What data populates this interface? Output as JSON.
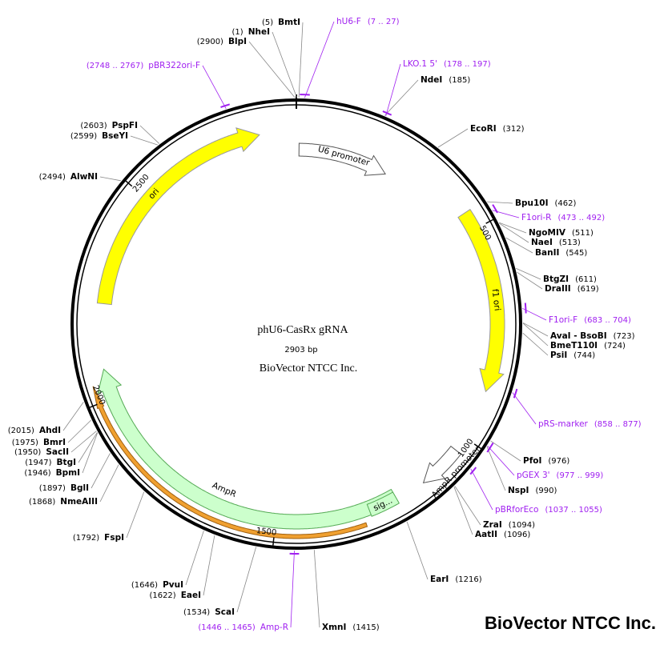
{
  "title": "phU6-CasRx gRNA",
  "length": {
    "value": 2903,
    "label": "2903 bp"
  },
  "company": "BioVector NTCC Inc.",
  "watermark": "BioVector NTCC Inc.",
  "ticks": [
    500,
    1000,
    1500,
    2000,
    2500
  ],
  "features": [
    {
      "name": "U6 promoter",
      "start": 7,
      "end": 247,
      "color": "#ffffff"
    },
    {
      "name": "f1 ori",
      "start": 456,
      "end": 884,
      "color": "#ffff00"
    },
    {
      "name": "AmpR promoter",
      "start": 1035,
      "end": 1140,
      "color": "#ffffff"
    },
    {
      "name": "AmpR",
      "start": 1211,
      "end": 2071,
      "color": "#ccffcc"
    },
    {
      "name": "sig...",
      "start": 1211,
      "end": 1279,
      "color": "#ccffcc"
    },
    {
      "start": 1296,
      "end": 2040,
      "color": "#f0a030"
    },
    {
      "name": "ori",
      "start": 2226,
      "end": 2814,
      "color": "#ffff00"
    }
  ],
  "sites": [
    {
      "name": "BmtI",
      "pos": {
        "value": 5,
        "label": "(5)"
      }
    },
    {
      "name": "NheI",
      "pos": {
        "value": 1,
        "label": "(1)"
      }
    },
    {
      "name": "BlpI",
      "pos": {
        "value": 2900,
        "label": "(2900)"
      }
    },
    {
      "name": "NdeI",
      "pos": {
        "value": 185,
        "label": "(185)"
      }
    },
    {
      "name": "EcoRI",
      "pos": {
        "value": 312,
        "label": "(312)"
      }
    },
    {
      "name": "Bpu10I",
      "pos": {
        "value": 462,
        "label": "(462)"
      }
    },
    {
      "name": "NgoMIV",
      "pos": {
        "value": 511,
        "label": "(511)"
      }
    },
    {
      "name": "NaeI",
      "pos": {
        "value": 513,
        "label": "(513)"
      }
    },
    {
      "name": "BanII",
      "pos": {
        "value": 545,
        "label": "(545)"
      }
    },
    {
      "name": "BtgZI",
      "pos": {
        "value": 611,
        "label": "(611)"
      }
    },
    {
      "name": "DraIII",
      "pos": {
        "value": 619,
        "label": "(619)"
      }
    },
    {
      "name": "AvaI - BsoBI",
      "pos": {
        "value": 723,
        "label": "(723)"
      }
    },
    {
      "name": "BmeT110I",
      "pos": {
        "value": 724,
        "label": "(724)"
      }
    },
    {
      "name": "PsiI",
      "pos": {
        "value": 744,
        "label": "(744)"
      }
    },
    {
      "name": "PfoI",
      "pos": {
        "value": 976,
        "label": "(976)"
      }
    },
    {
      "name": "NspI",
      "pos": {
        "value": 990,
        "label": "(990)"
      }
    },
    {
      "name": "ZraI",
      "pos": {
        "value": 1094,
        "label": "(1094)"
      }
    },
    {
      "name": "AatII",
      "pos": {
        "value": 1096,
        "label": "(1096)"
      }
    },
    {
      "name": "EarI",
      "pos": {
        "value": 1216,
        "label": "(1216)"
      }
    },
    {
      "name": "XmnI",
      "pos": {
        "value": 1415,
        "label": "(1415)"
      }
    },
    {
      "name": "ScaI",
      "pos": {
        "value": 1534,
        "label": "(1534)"
      }
    },
    {
      "name": "EaeI",
      "pos": {
        "value": 1622,
        "label": "(1622)"
      }
    },
    {
      "name": "PvuI",
      "pos": {
        "value": 1646,
        "label": "(1646)"
      }
    },
    {
      "name": "FspI",
      "pos": {
        "value": 1792,
        "label": "(1792)"
      }
    },
    {
      "name": "NmeAIII",
      "pos": {
        "value": 1868,
        "label": "(1868)"
      }
    },
    {
      "name": "BglI",
      "pos": {
        "value": 1897,
        "label": "(1897)"
      }
    },
    {
      "name": "BpmI",
      "pos": {
        "value": 1946,
        "label": "(1946)"
      }
    },
    {
      "name": "BtgI",
      "pos": {
        "value": 1947,
        "label": "(1947)"
      }
    },
    {
      "name": "SacII",
      "pos": {
        "value": 1950,
        "label": "(1950)"
      }
    },
    {
      "name": "BmrI",
      "pos": {
        "value": 1975,
        "label": "(1975)"
      }
    },
    {
      "name": "AhdI",
      "pos": {
        "value": 2015,
        "label": "(2015)"
      }
    },
    {
      "name": "AlwNI",
      "pos": {
        "value": 2494,
        "label": "(2494)"
      }
    },
    {
      "name": "BseYI",
      "pos": {
        "value": 2599,
        "label": "(2599)"
      }
    },
    {
      "name": "PspFI",
      "pos": {
        "value": 2603,
        "label": "(2603)"
      }
    }
  ],
  "primers": [
    {
      "name": "hU6-F",
      "range": {
        "start": 7,
        "end": 27,
        "label": "(7 .. 27)"
      }
    },
    {
      "name": "pBR322ori-F",
      "range": {
        "start": 2748,
        "end": 2767,
        "label": "(2748 .. 2767)"
      }
    },
    {
      "name": "LKO.1 5'",
      "range": {
        "start": 178,
        "end": 197,
        "label": "(178 .. 197)"
      }
    },
    {
      "name": "F1ori-R",
      "range": {
        "start": 473,
        "end": 492,
        "label": "(473 .. 492)"
      }
    },
    {
      "name": "F1ori-F",
      "range": {
        "start": 683,
        "end": 704,
        "label": "(683 .. 704)"
      }
    },
    {
      "name": "pRS-marker",
      "range": {
        "start": 858,
        "end": 877,
        "label": "(858 .. 877)"
      }
    },
    {
      "name": "pGEX 3'",
      "range": {
        "start": 977,
        "end": 999,
        "label": "(977 .. 999)"
      }
    },
    {
      "name": "pBRforEco",
      "range": {
        "start": 1037,
        "end": 1055,
        "label": "(1037 .. 1055)"
      }
    },
    {
      "name": "Amp-R",
      "range": {
        "start": 1446,
        "end": 1465,
        "label": "(1446 .. 1465)"
      }
    }
  ]
}
